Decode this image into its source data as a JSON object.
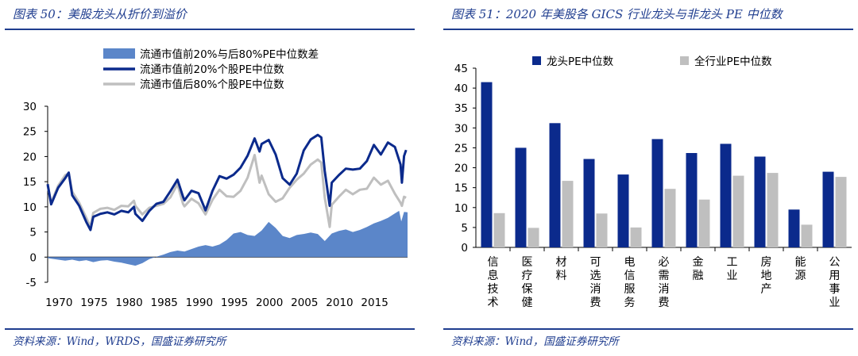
{
  "left_panel": {
    "title": "图表 50：美股龙头从折价到溢价",
    "source": "资料来源：Wind，WRDS，国盛证券研究所"
  },
  "right_panel": {
    "title": "图表 51：2020 年美股各 GICS 行业龙头与非龙头 PE 中位数",
    "source": "资料来源：Wind，国盛证券研究所"
  },
  "colors": {
    "dark_blue": "#0b2a8c",
    "mid_blue": "#5b86c9",
    "gray": "#bfbfbf",
    "title_blue": "#1f3d8f"
  },
  "chart_data": [
    {
      "type": "line",
      "legend_position": "top",
      "x_tick_labels": [
        "1970",
        "1975",
        "1980",
        "1985",
        "1990",
        "1995",
        "2000",
        "2005",
        "2010",
        "2015"
      ],
      "y_tick_labels": [
        "30",
        "25",
        "20",
        "15",
        "10",
        "5",
        "0",
        "-5"
      ],
      "xlim": [
        1968.5,
        2019.8
      ],
      "ylim": [
        -5,
        30
      ],
      "grid": false,
      "series": [
        {
          "name": "流通市值前20%与后80%PE中位数差",
          "kind": "area",
          "color": "#5b86c9",
          "points": [
            [
              1968.5,
              -0.2
            ],
            [
              1970,
              -0.5
            ],
            [
              1971,
              -0.7
            ],
            [
              1972,
              -0.5
            ],
            [
              1973,
              -0.8
            ],
            [
              1974,
              -0.6
            ],
            [
              1975,
              -1.0
            ],
            [
              1976,
              -0.7
            ],
            [
              1977,
              -0.6
            ],
            [
              1978,
              -0.9
            ],
            [
              1979,
              -1.1
            ],
            [
              1980,
              -1.4
            ],
            [
              1981,
              -1.7
            ],
            [
              1982,
              -1.2
            ],
            [
              1983,
              -0.4
            ],
            [
              1984,
              0.1
            ],
            [
              1985,
              0.5
            ],
            [
              1986,
              1.0
            ],
            [
              1987,
              1.3
            ],
            [
              1988,
              1.1
            ],
            [
              1989,
              1.6
            ],
            [
              1990,
              2.1
            ],
            [
              1991,
              2.4
            ],
            [
              1992,
              2.1
            ],
            [
              1993,
              2.5
            ],
            [
              1994,
              3.4
            ],
            [
              1995,
              4.7
            ],
            [
              1996,
              5.0
            ],
            [
              1997,
              4.4
            ],
            [
              1998,
              4.2
            ],
            [
              1999,
              5.3
            ],
            [
              2000,
              7.0
            ],
            [
              2001,
              5.8
            ],
            [
              2002,
              4.2
            ],
            [
              2003,
              3.8
            ],
            [
              2004,
              4.4
            ],
            [
              2005,
              4.6
            ],
            [
              2006,
              4.9
            ],
            [
              2007,
              4.6
            ],
            [
              2008,
              3.2
            ],
            [
              2009,
              4.7
            ],
            [
              2010,
              5.2
            ],
            [
              2011,
              5.5
            ],
            [
              2012,
              5.0
            ],
            [
              2013,
              5.4
            ],
            [
              2014,
              6.0
            ],
            [
              2015,
              6.7
            ],
            [
              2016,
              7.2
            ],
            [
              2017,
              7.8
            ],
            [
              2018,
              8.7
            ],
            [
              2018.6,
              9.2
            ],
            [
              2018.9,
              7.1
            ],
            [
              2019.3,
              9.0
            ],
            [
              2019.8,
              8.9
            ]
          ]
        },
        {
          "name": "流通市值前20%个股PE中位数",
          "kind": "line",
          "color": "#0b2a8c",
          "points": [
            [
              1968.5,
              14.5
            ],
            [
              1969,
              10.5
            ],
            [
              1970,
              13.8
            ],
            [
              1971,
              15.7
            ],
            [
              1971.5,
              16.8
            ],
            [
              1972,
              12.3
            ],
            [
              1973,
              10.2
            ],
            [
              1974,
              7.0
            ],
            [
              1974.6,
              5.4
            ],
            [
              1975,
              8.0
            ],
            [
              1976,
              8.6
            ],
            [
              1977,
              8.9
            ],
            [
              1978,
              8.5
            ],
            [
              1979,
              9.2
            ],
            [
              1980,
              8.9
            ],
            [
              1980.8,
              10.0
            ],
            [
              1981,
              8.6
            ],
            [
              1982,
              7.2
            ],
            [
              1983,
              9.2
            ],
            [
              1984,
              10.6
            ],
            [
              1985,
              11.0
            ],
            [
              1986,
              13.1
            ],
            [
              1987,
              15.4
            ],
            [
              1987.8,
              12.0
            ],
            [
              1988,
              11.3
            ],
            [
              1989,
              13.2
            ],
            [
              1990,
              12.7
            ],
            [
              1991,
              9.3
            ],
            [
              1992,
              13.2
            ],
            [
              1993,
              16.1
            ],
            [
              1994,
              15.6
            ],
            [
              1995,
              16.4
            ],
            [
              1996,
              17.8
            ],
            [
              1997,
              20.2
            ],
            [
              1998,
              23.6
            ],
            [
              1998.7,
              21.0
            ],
            [
              1999,
              22.5
            ],
            [
              2000,
              23.3
            ],
            [
              2001,
              20.4
            ],
            [
              2002,
              15.7
            ],
            [
              2003,
              14.4
            ],
            [
              2004,
              16.6
            ],
            [
              2005,
              21.2
            ],
            [
              2006,
              23.4
            ],
            [
              2007,
              24.3
            ],
            [
              2007.5,
              23.8
            ],
            [
              2008,
              17.1
            ],
            [
              2008.7,
              10.2
            ],
            [
              2009,
              14.8
            ],
            [
              2010,
              16.3
            ],
            [
              2011,
              17.6
            ],
            [
              2012,
              17.4
            ],
            [
              2013,
              17.6
            ],
            [
              2014,
              19.1
            ],
            [
              2015,
              22.3
            ],
            [
              2016,
              20.4
            ],
            [
              2017,
              22.8
            ],
            [
              2018,
              21.9
            ],
            [
              2018.8,
              18.4
            ],
            [
              2019.0,
              14.8
            ],
            [
              2019.3,
              20.1
            ],
            [
              2019.6,
              21.3
            ]
          ]
        },
        {
          "name": "流通市值后80%个股PE中位数",
          "kind": "line",
          "color": "#bfbfbf",
          "points": [
            [
              1968.5,
              14.2
            ],
            [
              1969,
              10.8
            ],
            [
              1970,
              14.2
            ],
            [
              1971,
              16.3
            ],
            [
              1971.5,
              16.6
            ],
            [
              1972,
              13.0
            ],
            [
              1973,
              10.8
            ],
            [
              1974,
              7.8
            ],
            [
              1974.6,
              6.0
            ],
            [
              1975,
              8.8
            ],
            [
              1976,
              9.6
            ],
            [
              1977,
              9.8
            ],
            [
              1978,
              9.4
            ],
            [
              1979,
              10.2
            ],
            [
              1980,
              10.1
            ],
            [
              1980.8,
              11.2
            ],
            [
              1981,
              10.2
            ],
            [
              1982,
              8.5
            ],
            [
              1983,
              9.8
            ],
            [
              1984,
              10.2
            ],
            [
              1985,
              10.6
            ],
            [
              1986,
              11.9
            ],
            [
              1987,
              14.5
            ],
            [
              1987.8,
              10.6
            ],
            [
              1988,
              10.1
            ],
            [
              1989,
              11.6
            ],
            [
              1990,
              10.7
            ],
            [
              1991,
              8.5
            ],
            [
              1992,
              11.4
            ],
            [
              1993,
              13.4
            ],
            [
              1994,
              12.1
            ],
            [
              1995,
              12.0
            ],
            [
              1996,
              13.2
            ],
            [
              1997,
              15.8
            ],
            [
              1998,
              20.3
            ],
            [
              1998.7,
              14.8
            ],
            [
              1999,
              16.2
            ],
            [
              2000,
              12.5
            ],
            [
              2001,
              11.0
            ],
            [
              2002,
              11.7
            ],
            [
              2003,
              13.8
            ],
            [
              2004,
              15.4
            ],
            [
              2005,
              16.6
            ],
            [
              2006,
              18.4
            ],
            [
              2007,
              19.4
            ],
            [
              2007.5,
              18.8
            ],
            [
              2008,
              11.8
            ],
            [
              2008.7,
              6.0
            ],
            [
              2009,
              10.4
            ],
            [
              2010,
              12.0
            ],
            [
              2011,
              13.4
            ],
            [
              2012,
              12.5
            ],
            [
              2013,
              13.4
            ],
            [
              2014,
              13.6
            ],
            [
              2015,
              15.8
            ],
            [
              2016,
              14.4
            ],
            [
              2017,
              15.2
            ],
            [
              2018,
              12.6
            ],
            [
              2018.8,
              10.8
            ],
            [
              2019.0,
              10.2
            ],
            [
              2019.3,
              12.0
            ],
            [
              2019.6,
              11.8
            ]
          ]
        }
      ]
    },
    {
      "type": "bar",
      "legend_position": "top",
      "categories": [
        "信息技术",
        "医疗保健",
        "材料",
        "可选消费",
        "电信服务",
        "必需消费",
        "金融",
        "工业",
        "房地产",
        "能源",
        "公用事业"
      ],
      "y_tick_labels": [
        "45",
        "40",
        "35",
        "30",
        "25",
        "20",
        "15",
        "10",
        "5",
        "0"
      ],
      "ylim": [
        0,
        45
      ],
      "grid": false,
      "series": [
        {
          "name": "龙头PE中位数",
          "color": "#0b2a8c",
          "values": [
            41.5,
            25.0,
            31.2,
            22.2,
            18.3,
            27.2,
            23.7,
            26.0,
            22.8,
            9.5,
            19.0
          ]
        },
        {
          "name": "全行业PE中位数",
          "color": "#bfbfbf",
          "values": [
            8.6,
            4.9,
            16.7,
            8.5,
            5.0,
            14.7,
            12.0,
            18.0,
            18.7,
            5.7,
            17.7
          ]
        }
      ]
    }
  ]
}
